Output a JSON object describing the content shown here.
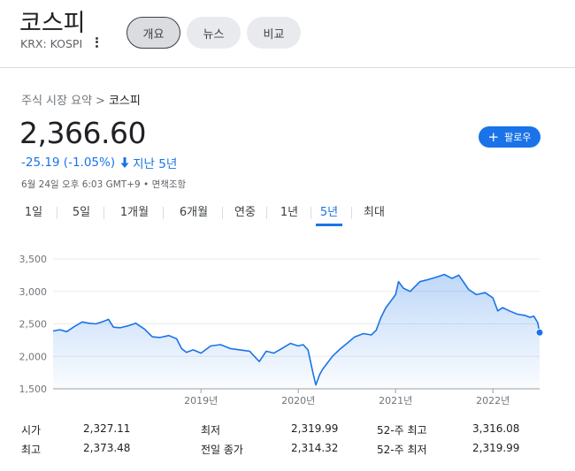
{
  "header": {
    "title": "코스피",
    "ticker": "KRX: KOSPI",
    "chips": [
      "개요",
      "뉴스",
      "비교"
    ]
  },
  "breadcrumb": {
    "parent": "주식 시장 요약",
    "separator": ">",
    "current": "코스피"
  },
  "quote": {
    "price": "2,366.60",
    "change": "-25.19 (-1.05%)",
    "period": "지난 5년",
    "timestamp": "6월 24일 오후 6:03 GMT+9 • 면책조항",
    "follow_label": "팔로우"
  },
  "range_tabs": {
    "items": [
      "1일",
      "5일",
      "1개월",
      "6개월",
      "연중",
      "1년",
      "5년",
      "최대"
    ],
    "selected": "5년"
  },
  "colors": {
    "accent": "#1a73e8",
    "line": "#1a73e8",
    "text": "#202124"
  },
  "chart_data": {
    "type": "area",
    "ylim": [
      1500,
      3500
    ],
    "yticks": [
      1500,
      2000,
      2500,
      3000,
      3500
    ],
    "ytick_labels": [
      "1,500",
      "2,000",
      "2,500",
      "3,000",
      "3,500"
    ],
    "xlim": [
      2017.48,
      2022.48
    ],
    "xticks": [
      2019,
      2020,
      2021,
      2022
    ],
    "xtick_labels": [
      "2019년",
      "2020년",
      "2021년",
      "2022년"
    ],
    "last_value": 2366.6,
    "series": [
      {
        "x": [
          2017.48,
          2017.55,
          2017.62,
          2017.7,
          2017.78,
          2017.85,
          2017.92,
          2018.0,
          2018.05,
          2018.1,
          2018.17,
          2018.25,
          2018.33,
          2018.42,
          2018.5,
          2018.58,
          2018.67,
          2018.75,
          2018.8,
          2018.85,
          2018.92,
          2019.0,
          2019.1,
          2019.2,
          2019.3,
          2019.4,
          2019.5,
          2019.58,
          2019.6,
          2019.67,
          2019.75,
          2019.83,
          2019.92,
          2020.0,
          2020.05,
          2020.1,
          2020.15,
          2020.18,
          2020.22,
          2020.25,
          2020.3,
          2020.35,
          2020.42,
          2020.5,
          2020.58,
          2020.67,
          2020.75,
          2020.8,
          2020.85,
          2020.9,
          2020.95,
          2021.0,
          2021.03,
          2021.08,
          2021.15,
          2021.25,
          2021.33,
          2021.42,
          2021.5,
          2021.58,
          2021.65,
          2021.75,
          2021.83,
          2021.92,
          2022.0,
          2022.05,
          2022.1,
          2022.17,
          2022.25,
          2022.33,
          2022.38,
          2022.42,
          2022.46,
          2022.48
        ],
        "values": [
          2390,
          2410,
          2380,
          2460,
          2530,
          2510,
          2500,
          2540,
          2570,
          2450,
          2440,
          2470,
          2510,
          2420,
          2300,
          2290,
          2320,
          2270,
          2120,
          2060,
          2100,
          2050,
          2160,
          2180,
          2120,
          2100,
          2080,
          1950,
          1920,
          2080,
          2050,
          2120,
          2200,
          2160,
          2180,
          2100,
          1750,
          1560,
          1720,
          1800,
          1900,
          2000,
          2100,
          2200,
          2300,
          2350,
          2330,
          2400,
          2600,
          2750,
          2850,
          2950,
          3150,
          3050,
          3000,
          3150,
          3180,
          3220,
          3260,
          3200,
          3250,
          3030,
          2950,
          2980,
          2900,
          2700,
          2750,
          2700,
          2650,
          2630,
          2600,
          2620,
          2520,
          2366.6
        ]
      }
    ]
  },
  "stats": {
    "rows": [
      [
        {
          "label": "시가",
          "value": "2,327.11"
        },
        {
          "label": "최저",
          "value": "2,319.99"
        },
        {
          "label": "52-주 최고",
          "value": "3,316.08"
        }
      ],
      [
        {
          "label": "최고",
          "value": "2,373.48"
        },
        {
          "label": "전일 종가",
          "value": "2,314.32"
        },
        {
          "label": "52-주 최저",
          "value": "2,319.99"
        }
      ]
    ]
  }
}
